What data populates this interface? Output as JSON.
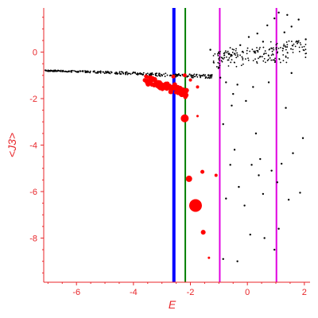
{
  "chart_data": {
    "type": "scatter",
    "xlabel": "E",
    "ylabel": "<J3>",
    "xlim": [
      -7.15,
      2.2
    ],
    "ylim": [
      -9.9,
      1.9
    ],
    "x_ticks": [
      -6,
      -4,
      -2,
      0,
      2
    ],
    "y_ticks": [
      0,
      -2,
      -4,
      -6,
      -8
    ],
    "grid": false,
    "colors": {
      "axes": "#e8262a",
      "highlight_points": "#ff0000",
      "background_points": "#000000",
      "line_blue": "#0000ff",
      "line_green": "#008000",
      "line_magenta": "#e000e0"
    },
    "vertical_lines": [
      {
        "x": -2.58,
        "color": "#0000ff",
        "width": 4
      },
      {
        "x": -2.18,
        "color": "#008000",
        "width": 2
      },
      {
        "x": -0.97,
        "color": "#e000e0",
        "width": 2
      },
      {
        "x": 1.02,
        "color": "#e000e0",
        "width": 2
      }
    ],
    "series": [
      {
        "color": "#ff0000",
        "points": [
          [
            -2.2,
            -2.85,
            5
          ],
          [
            -2.05,
            -5.45,
            4
          ],
          [
            -1.82,
            -6.6,
            8
          ],
          [
            -1.58,
            -5.15,
            2.5
          ],
          [
            -1.55,
            -7.75,
            3
          ],
          [
            -1.1,
            -5.3,
            2
          ],
          [
            -1.35,
            -8.85,
            1.5
          ],
          [
            -1.75,
            -2.75,
            1.5
          ],
          [
            -2.3,
            -1.8,
            4
          ],
          [
            -2.15,
            -1.85,
            3
          ],
          [
            -2.45,
            -1.65,
            3
          ],
          [
            -2.55,
            -1.4,
            3
          ],
          [
            -2.75,
            -1.5,
            4
          ],
          [
            -3.0,
            -1.4,
            3
          ],
          [
            -3.25,
            -1.2,
            3
          ],
          [
            -2.6,
            -1.05,
            2.5
          ],
          [
            -2.2,
            -1.0,
            2.5
          ],
          [
            -2.0,
            -1.2,
            2
          ],
          [
            -1.75,
            -1.5,
            2
          ]
        ]
      },
      {
        "color": "#000000",
        "points": [
          [
            -0.95,
            -1.1,
            1.2
          ],
          [
            -0.75,
            -1.3,
            1.2
          ],
          [
            -0.5,
            -1.8,
            1.2
          ],
          [
            -0.35,
            -1.4,
            1.2
          ],
          [
            -0.55,
            -2.3,
            1.2
          ],
          [
            -0.85,
            -3.1,
            1.2
          ],
          [
            -0.05,
            -2.1,
            1.2
          ],
          [
            0.3,
            -3.5,
            1.2
          ],
          [
            -0.45,
            -4.2,
            1.2
          ],
          [
            0.45,
            -4.6,
            1.2
          ],
          [
            1.2,
            -4.8,
            1.2
          ],
          [
            1.95,
            -3.7,
            1.2
          ],
          [
            -0.6,
            -4.85,
            1.2
          ],
          [
            0.15,
            -4.85,
            1.2
          ],
          [
            0.85,
            -5.1,
            1.2
          ],
          [
            -0.3,
            -5.8,
            1.2
          ],
          [
            0.4,
            -5.3,
            1.2
          ],
          [
            1.05,
            -5.6,
            1.2
          ],
          [
            -0.75,
            -6.3,
            1.2
          ],
          [
            0.55,
            -6.1,
            1.2
          ],
          [
            1.85,
            -6.05,
            1.2
          ],
          [
            -0.85,
            -8.9,
            1.2
          ],
          [
            -0.35,
            -9.0,
            1.2
          ],
          [
            0.1,
            -7.85,
            1.2
          ],
          [
            0.6,
            -8.0,
            1.2
          ],
          [
            1.1,
            -7.6,
            1.2
          ],
          [
            0.95,
            -8.5,
            1.2
          ],
          [
            -0.1,
            -6.6,
            1.2
          ],
          [
            0.2,
            -1.5,
            1.2
          ],
          [
            0.75,
            -1.3,
            1.2
          ],
          [
            1.55,
            -0.9,
            1.2
          ],
          [
            1.35,
            -2.4,
            1.2
          ],
          [
            1.6,
            -4.35,
            1.2
          ],
          [
            1.45,
            -6.35,
            1.2
          ],
          [
            0.05,
            0.65,
            1.2
          ],
          [
            0.35,
            0.8,
            1.2
          ],
          [
            0.7,
            1.15,
            1.2
          ],
          [
            0.95,
            1.45,
            1.2
          ],
          [
            1.1,
            1.7,
            1.2
          ],
          [
            1.3,
            0.85,
            1.2
          ],
          [
            1.55,
            1.1,
            1.2
          ],
          [
            1.8,
            1.4,
            1.2
          ],
          [
            2.05,
            0.55,
            1.2
          ],
          [
            1.4,
            1.6,
            1.2
          ],
          [
            0.55,
            0.45,
            1.2
          ],
          [
            -0.25,
            0.3,
            1.2
          ],
          [
            -0.55,
            -0.15,
            1.2
          ],
          [
            -1.3,
            0.1,
            1.2
          ]
        ]
      }
    ]
  }
}
